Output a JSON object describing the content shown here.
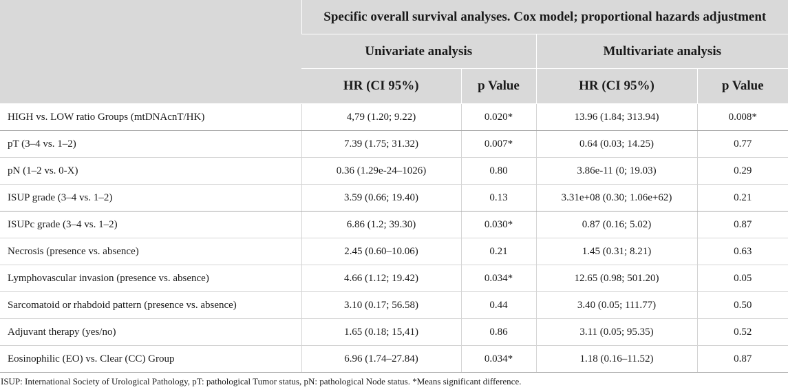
{
  "header": {
    "title": "Specific overall survival analyses. Cox model; proportional hazards adjustment",
    "univariate": "Univariate analysis",
    "multivariate": "Multivariate analysis",
    "hr_label": "HR (CI 95%)",
    "p_label": "p Value"
  },
  "rows": [
    {
      "label": "HIGH vs. LOW ratio Groups (mtDNAcnT/HK)",
      "uni_hr": "4,79 (1.20; 9.22)",
      "uni_p": "0.020*",
      "multi_hr": "13.96 (1.84; 313.94)",
      "multi_p": "0.008*"
    },
    {
      "label": "pT (3–4 vs. 1–2)",
      "uni_hr": "7.39 (1.75; 31.32)",
      "uni_p": "0.007*",
      "multi_hr": "0.64 (0.03; 14.25)",
      "multi_p": "0.77"
    },
    {
      "label": "pN (1–2 vs. 0-X)",
      "uni_hr": "0.36 (1.29e-24–1026)",
      "uni_p": "0.80",
      "multi_hr": "3.86e-11 (0; 19.03)",
      "multi_p": "0.29"
    },
    {
      "label": "ISUP grade (3–4 vs. 1–2)",
      "uni_hr": "3.59 (0.66; 19.40)",
      "uni_p": "0.13",
      "multi_hr": "3.31e+08 (0.30; 1.06e+62)",
      "multi_p": "0.21"
    },
    {
      "label": "ISUPc grade (3–4 vs. 1–2)",
      "uni_hr": "6.86 (1.2; 39.30)",
      "uni_p": "0.030*",
      "multi_hr": "0.87 (0.16; 5.02)",
      "multi_p": "0.87"
    },
    {
      "label": "Necrosis (presence vs. absence)",
      "uni_hr": "2.45 (0.60–10.06)",
      "uni_p": "0.21",
      "multi_hr": "1.45 (0.31; 8.21)",
      "multi_p": "0.63"
    },
    {
      "label": "Lymphovascular invasion (presence vs. absence)",
      "uni_hr": "4.66 (1.12; 19.42)",
      "uni_p": "0.034*",
      "multi_hr": "12.65 (0.98; 501.20)",
      "multi_p": "0.05"
    },
    {
      "label": "Sarcomatoid or rhabdoid pattern (presence vs. absence)",
      "uni_hr": "3.10 (0.17; 56.58)",
      "uni_p": "0.44",
      "multi_hr": "3.40 (0.05; 111.77)",
      "multi_p": "0.50"
    },
    {
      "label": "Adjuvant therapy (yes/no)",
      "uni_hr": "1.65 (0.18; 15,41)",
      "uni_p": "0.86",
      "multi_hr": "3.11 (0.05; 95.35)",
      "multi_p": "0.52"
    },
    {
      "label": "Eosinophilic (EO) vs. Clear (CC) Group",
      "uni_hr": "6.96 (1.74–27.84)",
      "uni_p": "0.034*",
      "multi_hr": "1.18 (0.16–11.52)",
      "multi_p": "0.87"
    }
  ],
  "footnote": "ISUP: International Society of Urological Pathology, pT: pathological Tumor status, pN: pathological Node status. *Means significant difference."
}
